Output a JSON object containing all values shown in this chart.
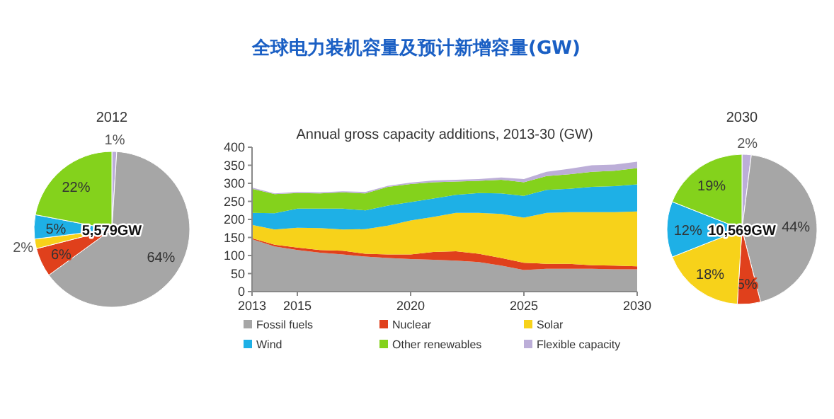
{
  "chart_data": [
    {
      "type": "other",
      "title": "全球电力装机容量及预计新增容量(GW)"
    },
    {
      "type": "pie",
      "title": "2012",
      "categories": [
        null,
        null,
        null,
        null,
        null,
        null
      ],
      "values": [
        1,
        64,
        6,
        2,
        5,
        22
      ],
      "colors": [
        "#bcaed8",
        "#a6a6a6",
        "#e0401c",
        "#f7d21a",
        "#1eb0e6",
        "#84d21c"
      ],
      "value_labels": [
        "1%",
        "64%",
        "6%",
        "2%",
        "5%",
        "22%"
      ],
      "annotations": [
        "5,579GW"
      ]
    },
    {
      "type": "area",
      "title": "Annual gross capacity additions, 2013-30 (GW)",
      "stacked": true,
      "legend": "bottom",
      "grid": false,
      "x": [
        2013,
        2014,
        2015,
        2016,
        2017,
        2018,
        2019,
        2020,
        2021,
        2022,
        2023,
        2024,
        2025,
        2026,
        2027,
        2028,
        2029,
        2030
      ],
      "xlim": [
        2013,
        2030
      ],
      "xticks": [
        2013,
        2015,
        2020,
        2025,
        2030
      ],
      "ylim": [
        0,
        400
      ],
      "yticks": [
        0,
        50,
        100,
        150,
        200,
        250,
        300,
        350,
        400
      ],
      "series": [
        {
          "name": "Fossil fuels",
          "color": "#a6a6a6",
          "values": [
            145,
            125,
            115,
            108,
            103,
            97,
            93,
            90,
            88,
            86,
            82,
            72,
            60,
            63,
            63,
            63,
            62,
            62
          ]
        },
        {
          "name": "Nuclear",
          "color": "#e0401c",
          "values": [
            3,
            5,
            7,
            7,
            10,
            8,
            10,
            13,
            22,
            26,
            23,
            21,
            20,
            14,
            14,
            10,
            10,
            8
          ]
        },
        {
          "name": "Solar",
          "color": "#f7d21a",
          "values": [
            37,
            42,
            55,
            61,
            59,
            68,
            80,
            94,
            97,
            106,
            113,
            122,
            125,
            141,
            143,
            147,
            148,
            152
          ]
        },
        {
          "name": "Wind",
          "color": "#1eb0e6",
          "values": [
            33,
            45,
            53,
            54,
            58,
            52,
            55,
            51,
            51,
            50,
            55,
            57,
            60,
            64,
            65,
            70,
            72,
            75
          ]
        },
        {
          "name": "Other renewables",
          "color": "#84d21c",
          "values": [
            67,
            53,
            43,
            42,
            45,
            47,
            52,
            50,
            45,
            37,
            34,
            38,
            38,
            38,
            40,
            42,
            43,
            45
          ]
        },
        {
          "name": "Flexible capacity",
          "color": "#bcaed8",
          "values": [
            3,
            2,
            3,
            3,
            3,
            4,
            3,
            4,
            5,
            5,
            5,
            6,
            9,
            12,
            15,
            18,
            17,
            18
          ]
        }
      ]
    },
    {
      "type": "pie",
      "title": "2030",
      "categories": [
        null,
        null,
        null,
        null,
        null,
        null
      ],
      "values": [
        2,
        44,
        5,
        18,
        12,
        19
      ],
      "colors": [
        "#bcaed8",
        "#a6a6a6",
        "#e0401c",
        "#f7d21a",
        "#1eb0e6",
        "#84d21c"
      ],
      "value_labels": [
        "2%",
        "44%",
        "5%",
        "18%",
        "12%",
        "19%"
      ],
      "annotations": [
        "10,569GW"
      ]
    }
  ]
}
